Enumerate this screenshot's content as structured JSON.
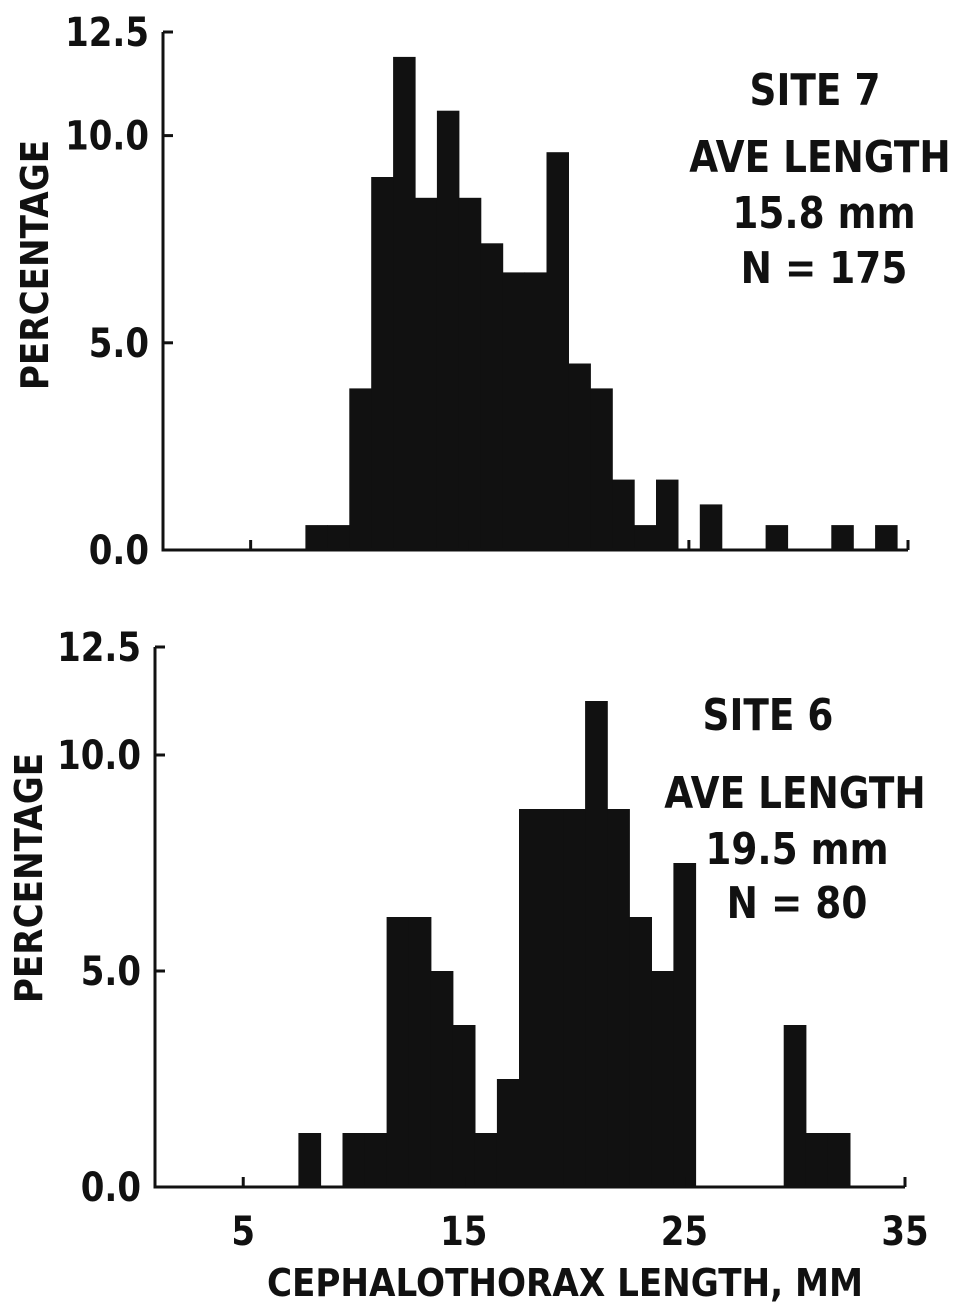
{
  "chart_data": [
    {
      "type": "bar",
      "subplot": "top",
      "ylabel": "PERCENTAGE",
      "xlabel": "",
      "ylim": [
        0,
        12.5
      ],
      "xlim": [
        1,
        35
      ],
      "yticks": [
        "0.0",
        "5.0",
        "10.0",
        "12.5"
      ],
      "yticks_values": [
        0,
        5,
        10,
        12.5
      ],
      "xticks_values": [
        5,
        15,
        25,
        35
      ],
      "xticks": [
        "",
        "",
        "",
        ""
      ],
      "bin_width": 1,
      "bins": [
        {
          "x": 8,
          "value": 0.6
        },
        {
          "x": 9,
          "value": 0.6
        },
        {
          "x": 10,
          "value": 3.9
        },
        {
          "x": 11,
          "value": 9.0
        },
        {
          "x": 12,
          "value": 11.9
        },
        {
          "x": 13,
          "value": 8.5
        },
        {
          "x": 14,
          "value": 10.6
        },
        {
          "x": 15,
          "value": 8.5
        },
        {
          "x": 16,
          "value": 7.4
        },
        {
          "x": 17,
          "value": 6.7
        },
        {
          "x": 18,
          "value": 6.7
        },
        {
          "x": 19,
          "value": 9.6
        },
        {
          "x": 20,
          "value": 4.5
        },
        {
          "x": 21,
          "value": 3.9
        },
        {
          "x": 22,
          "value": 1.7
        },
        {
          "x": 23,
          "value": 0.6
        },
        {
          "x": 24,
          "value": 1.7
        },
        {
          "x": 26,
          "value": 1.1
        },
        {
          "x": 29,
          "value": 0.6
        },
        {
          "x": 32,
          "value": 0.6
        },
        {
          "x": 34,
          "value": 0.6
        }
      ],
      "annotation": [
        "SITE 7",
        "AVE LENGTH",
        "15.8 mm",
        "N = 175"
      ]
    },
    {
      "type": "bar",
      "subplot": "bottom",
      "ylabel": "PERCENTAGE",
      "xlabel": "CEPHALOTHORAX LENGTH, MM",
      "ylim": [
        0,
        12.5
      ],
      "xlim": [
        1,
        35
      ],
      "yticks": [
        "0.0",
        "5.0",
        "10.0",
        "12.5"
      ],
      "yticks_values": [
        0,
        5,
        10,
        12.5
      ],
      "xticks": [
        "5",
        "15",
        "25",
        "35"
      ],
      "xticks_values": [
        5,
        15,
        25,
        35
      ],
      "bin_width": 1,
      "bins": [
        {
          "x": 8,
          "value": 1.25
        },
        {
          "x": 10,
          "value": 1.25
        },
        {
          "x": 11,
          "value": 1.25
        },
        {
          "x": 12,
          "value": 6.25
        },
        {
          "x": 13,
          "value": 6.25
        },
        {
          "x": 14,
          "value": 5.0
        },
        {
          "x": 15,
          "value": 3.75
        },
        {
          "x": 16,
          "value": 1.25
        },
        {
          "x": 17,
          "value": 2.5
        },
        {
          "x": 18,
          "value": 8.75
        },
        {
          "x": 19,
          "value": 8.75
        },
        {
          "x": 20,
          "value": 8.75
        },
        {
          "x": 21,
          "value": 11.25
        },
        {
          "x": 22,
          "value": 8.75
        },
        {
          "x": 23,
          "value": 6.25
        },
        {
          "x": 24,
          "value": 5.0
        },
        {
          "x": 25,
          "value": 7.5
        },
        {
          "x": 30,
          "value": 3.75
        },
        {
          "x": 31,
          "value": 1.25
        },
        {
          "x": 32,
          "value": 1.25
        }
      ],
      "annotation": [
        "SITE 6",
        "AVE LENGTH",
        "19.5 mm",
        "N = 80"
      ]
    }
  ]
}
